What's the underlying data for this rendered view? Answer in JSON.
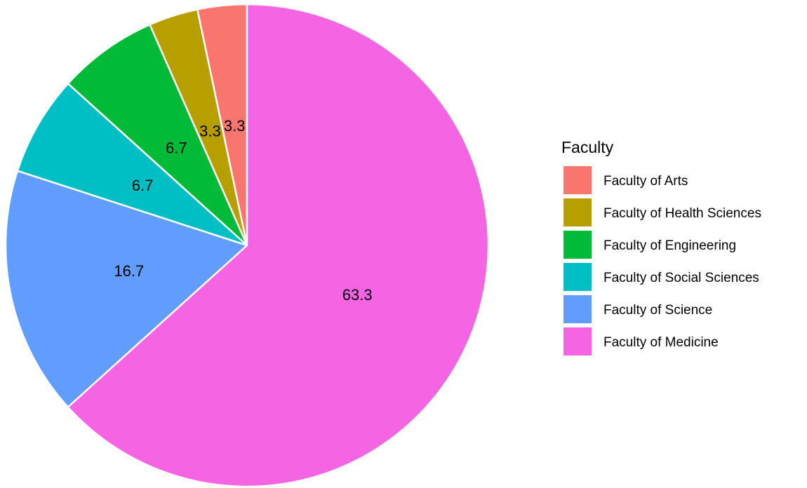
{
  "chart_data": {
    "type": "pie",
    "legend_title": "Faculty",
    "legend_position": "right",
    "slices": [
      {
        "label": "Faculty of Arts",
        "value": 3.3,
        "display": "3.3",
        "color": "#F8766D"
      },
      {
        "label": "Faculty of Health Sciences",
        "value": 3.3,
        "display": "3.3",
        "color": "#B79F00"
      },
      {
        "label": "Faculty of Engineering",
        "value": 6.7,
        "display": "6.7",
        "color": "#00BA38"
      },
      {
        "label": "Faculty of Social Sciences",
        "value": 6.7,
        "display": "6.7",
        "color": "#00BFC4"
      },
      {
        "label": "Faculty of Science",
        "value": 16.7,
        "display": "16.7",
        "color": "#619CFF"
      },
      {
        "label": "Faculty of Medicine",
        "value": 63.3,
        "display": "63.3",
        "color": "#F564E3"
      }
    ]
  }
}
